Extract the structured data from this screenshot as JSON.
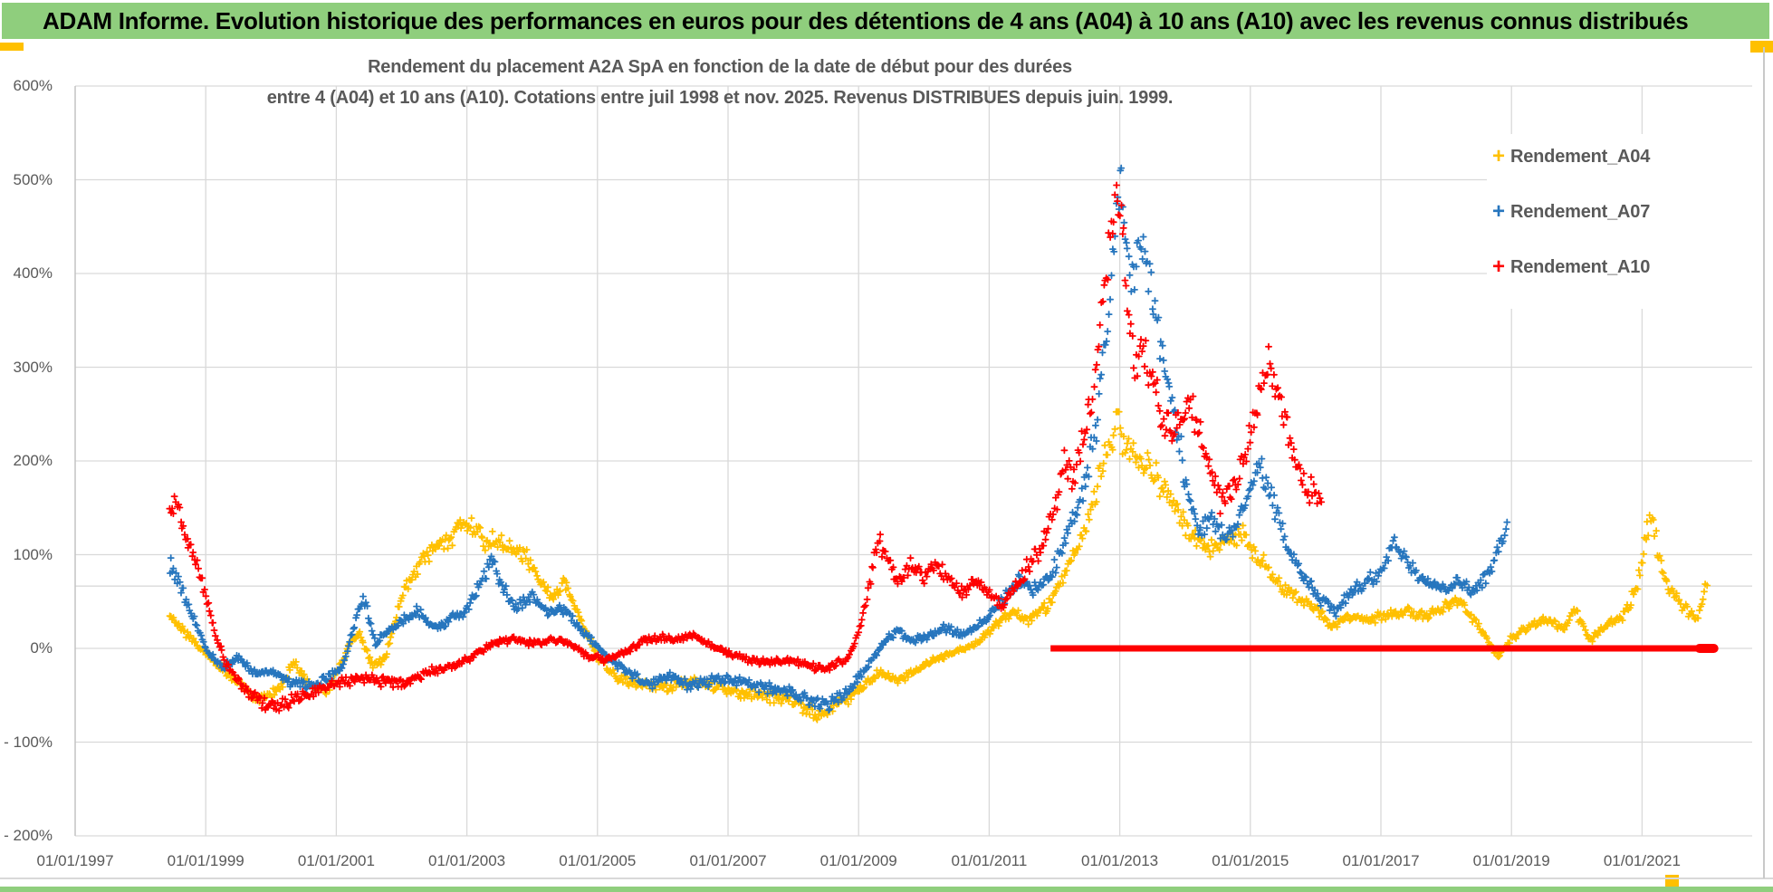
{
  "page": {
    "background": "#FFFFFF",
    "header_green": "#8FCE7D",
    "accent_gold": "#FFC000"
  },
  "header": {
    "title": "ADAM Informe. Evolution historique des performances en euros pour des détentions de 4 ans (A04) à 10 ans (A10) avec les revenus connus distribués"
  },
  "chart_data": {
    "type": "scatter",
    "marker": "plus",
    "grid": true,
    "title_line1": "Rendement du placement A2A SpA en fonction de la date de début pour des durées",
    "title_line2": "entre 4 (A04) et 10 ans (A10). Cotations entre juil 1998 et nov. 2025. Revenus DISTRIBUES depuis juin. 1999.",
    "legend_position": "top-right",
    "ylim": [
      -200,
      600
    ],
    "y_ticks": [
      {
        "label": "600%",
        "value": 600
      },
      {
        "label": "500%",
        "value": 500
      },
      {
        "label": "400%",
        "value": 400
      },
      {
        "label": "300%",
        "value": 300
      },
      {
        "label": "200%",
        "value": 200
      },
      {
        "label": "100%",
        "value": 100
      },
      {
        "label": "0%",
        "value": 0
      },
      {
        "label": "- 100%",
        "value": -100
      },
      {
        "label": "- 200%",
        "value": -200
      }
    ],
    "x_ticks": [
      {
        "label": "01/01/1997",
        "year": 1997
      },
      {
        "label": "01/01/1999",
        "year": 1999
      },
      {
        "label": "01/01/2001",
        "year": 2001
      },
      {
        "label": "01/01/2003",
        "year": 2003
      },
      {
        "label": "01/01/2005",
        "year": 2005
      },
      {
        "label": "01/01/2007",
        "year": 2007
      },
      {
        "label": "01/01/2009",
        "year": 2009
      },
      {
        "label": "01/01/2011",
        "year": 2011
      },
      {
        "label": "01/01/2013",
        "year": 2013
      },
      {
        "label": "01/01/2015",
        "year": 2015
      },
      {
        "label": "01/01/2017",
        "year": 2017
      },
      {
        "label": "01/01/2019",
        "year": 2019
      },
      {
        "label": "01/01/2021",
        "year": 2021
      }
    ],
    "extra_gridline_value": 66.5,
    "series": [
      {
        "name": "Rendement_A04",
        "color": "#FFC000",
        "points": [
          [
            1998.45,
            35
          ],
          [
            1998.7,
            15
          ],
          [
            1999.0,
            -5
          ],
          [
            1999.4,
            -30
          ],
          [
            1999.8,
            -55
          ],
          [
            2000.1,
            -45
          ],
          [
            2000.35,
            -15
          ],
          [
            2000.6,
            -40
          ],
          [
            2000.9,
            -45
          ],
          [
            2001.2,
            5
          ],
          [
            2001.35,
            15
          ],
          [
            2001.55,
            -20
          ],
          [
            2001.75,
            -10
          ],
          [
            2002.0,
            55
          ],
          [
            2002.3,
            95
          ],
          [
            2002.6,
            110
          ],
          [
            2002.9,
            130
          ],
          [
            2003.05,
            135
          ],
          [
            2003.3,
            115
          ],
          [
            2003.6,
            110
          ],
          [
            2003.9,
            100
          ],
          [
            2004.1,
            75
          ],
          [
            2004.3,
            55
          ],
          [
            2004.5,
            70
          ],
          [
            2004.75,
            30
          ],
          [
            2005.0,
            -10
          ],
          [
            2005.3,
            -30
          ],
          [
            2005.7,
            -40
          ],
          [
            2006.1,
            -40
          ],
          [
            2006.5,
            -35
          ],
          [
            2007.0,
            -45
          ],
          [
            2007.5,
            -50
          ],
          [
            2008.0,
            -55
          ],
          [
            2008.35,
            -72
          ],
          [
            2008.7,
            -60
          ],
          [
            2009.0,
            -45
          ],
          [
            2009.3,
            -25
          ],
          [
            2009.6,
            -35
          ],
          [
            2010.0,
            -18
          ],
          [
            2010.4,
            -5
          ],
          [
            2010.8,
            5
          ],
          [
            2011.1,
            25
          ],
          [
            2011.35,
            40
          ],
          [
            2011.6,
            30
          ],
          [
            2011.9,
            45
          ],
          [
            2012.2,
            85
          ],
          [
            2012.5,
            130
          ],
          [
            2012.75,
            195
          ],
          [
            2012.95,
            240
          ],
          [
            2013.1,
            215
          ],
          [
            2013.35,
            200
          ],
          [
            2013.6,
            180
          ],
          [
            2013.85,
            150
          ],
          [
            2014.1,
            120
          ],
          [
            2014.35,
            105
          ],
          [
            2014.65,
            115
          ],
          [
            2014.9,
            120
          ],
          [
            2015.1,
            100
          ],
          [
            2015.4,
            70
          ],
          [
            2015.7,
            55
          ],
          [
            2016.0,
            45
          ],
          [
            2016.25,
            22
          ],
          [
            2016.5,
            35
          ],
          [
            2016.8,
            30
          ],
          [
            2017.1,
            35
          ],
          [
            2017.4,
            40
          ],
          [
            2017.7,
            35
          ],
          [
            2018.0,
            45
          ],
          [
            2018.2,
            50
          ],
          [
            2018.5,
            25
          ],
          [
            2018.8,
            -8
          ],
          [
            2019.0,
            10
          ],
          [
            2019.3,
            25
          ],
          [
            2019.6,
            30
          ],
          [
            2019.8,
            20
          ],
          [
            2019.98,
            42
          ],
          [
            2020.2,
            8
          ],
          [
            2020.45,
            25
          ],
          [
            2020.7,
            35
          ],
          [
            2020.9,
            60
          ],
          [
            2021.05,
            120
          ],
          [
            2021.15,
            140
          ],
          [
            2021.3,
            80
          ],
          [
            2021.5,
            55
          ],
          [
            2021.7,
            40
          ],
          [
            2021.85,
            33
          ],
          [
            2022.0,
            68
          ]
        ]
      },
      {
        "name": "Rendement_A07",
        "color": "#2776BE",
        "points": [
          [
            1998.45,
            90
          ],
          [
            1998.6,
            70
          ],
          [
            1998.8,
            35
          ],
          [
            1999.0,
            0
          ],
          [
            1999.25,
            -20
          ],
          [
            1999.5,
            -10
          ],
          [
            1999.75,
            -25
          ],
          [
            2000.0,
            -25
          ],
          [
            2000.3,
            -35
          ],
          [
            2000.6,
            -40
          ],
          [
            2000.9,
            -30
          ],
          [
            2001.1,
            -20
          ],
          [
            2001.3,
            30
          ],
          [
            2001.42,
            55
          ],
          [
            2001.6,
            5
          ],
          [
            2001.8,
            20
          ],
          [
            2002.0,
            30
          ],
          [
            2002.25,
            40
          ],
          [
            2002.5,
            22
          ],
          [
            2002.75,
            32
          ],
          [
            2003.0,
            40
          ],
          [
            2003.2,
            70
          ],
          [
            2003.38,
            92
          ],
          [
            2003.55,
            65
          ],
          [
            2003.75,
            45
          ],
          [
            2004.0,
            55
          ],
          [
            2004.25,
            38
          ],
          [
            2004.5,
            42
          ],
          [
            2004.75,
            20
          ],
          [
            2005.0,
            2
          ],
          [
            2005.25,
            -15
          ],
          [
            2005.5,
            -28
          ],
          [
            2005.8,
            -38
          ],
          [
            2006.1,
            -30
          ],
          [
            2006.4,
            -40
          ],
          [
            2006.7,
            -35
          ],
          [
            2007.0,
            -32
          ],
          [
            2007.3,
            -38
          ],
          [
            2007.6,
            -42
          ],
          [
            2007.9,
            -45
          ],
          [
            2008.2,
            -52
          ],
          [
            2008.5,
            -60
          ],
          [
            2008.8,
            -50
          ],
          [
            2009.0,
            -32
          ],
          [
            2009.2,
            -12
          ],
          [
            2009.4,
            8
          ],
          [
            2009.6,
            18
          ],
          [
            2009.8,
            8
          ],
          [
            2010.0,
            12
          ],
          [
            2010.3,
            22
          ],
          [
            2010.6,
            15
          ],
          [
            2010.9,
            28
          ],
          [
            2011.2,
            50
          ],
          [
            2011.45,
            72
          ],
          [
            2011.7,
            62
          ],
          [
            2011.95,
            78
          ],
          [
            2012.2,
            120
          ],
          [
            2012.45,
            170
          ],
          [
            2012.65,
            240
          ],
          [
            2012.8,
            330
          ],
          [
            2012.92,
            430
          ],
          [
            2013.0,
            510
          ],
          [
            2013.08,
            440
          ],
          [
            2013.18,
            390
          ],
          [
            2013.3,
            430
          ],
          [
            2013.45,
            400
          ],
          [
            2013.6,
            330
          ],
          [
            2013.75,
            280
          ],
          [
            2013.9,
            220
          ],
          [
            2014.05,
            165
          ],
          [
            2014.2,
            125
          ],
          [
            2014.4,
            140
          ],
          [
            2014.6,
            115
          ],
          [
            2014.8,
            135
          ],
          [
            2015.0,
            170
          ],
          [
            2015.15,
            195
          ],
          [
            2015.3,
            165
          ],
          [
            2015.5,
            120
          ],
          [
            2015.7,
            90
          ],
          [
            2015.9,
            70
          ],
          [
            2016.1,
            50
          ],
          [
            2016.3,
            38
          ],
          [
            2016.55,
            60
          ],
          [
            2016.8,
            72
          ],
          [
            2017.0,
            82
          ],
          [
            2017.2,
            112
          ],
          [
            2017.35,
            95
          ],
          [
            2017.55,
            78
          ],
          [
            2017.75,
            68
          ],
          [
            2018.0,
            62
          ],
          [
            2018.2,
            72
          ],
          [
            2018.4,
            58
          ],
          [
            2018.6,
            75
          ],
          [
            2018.8,
            105
          ],
          [
            2018.95,
            135
          ]
        ]
      },
      {
        "name": "Rendement_A10",
        "color": "#FE0000",
        "points": [
          [
            1998.45,
            145
          ],
          [
            1998.55,
            160
          ],
          [
            1998.7,
            120
          ],
          [
            1998.85,
            90
          ],
          [
            1999.0,
            55
          ],
          [
            1999.15,
            15
          ],
          [
            1999.3,
            -15
          ],
          [
            1999.5,
            -35
          ],
          [
            1999.7,
            -50
          ],
          [
            1999.9,
            -60
          ],
          [
            2000.1,
            -62
          ],
          [
            2000.35,
            -55
          ],
          [
            2000.6,
            -48
          ],
          [
            2000.85,
            -40
          ],
          [
            2001.1,
            -35
          ],
          [
            2001.4,
            -32
          ],
          [
            2001.7,
            -35
          ],
          [
            2002.0,
            -38
          ],
          [
            2002.3,
            -28
          ],
          [
            2002.6,
            -22
          ],
          [
            2002.9,
            -15
          ],
          [
            2003.1,
            -8
          ],
          [
            2003.4,
            5
          ],
          [
            2003.7,
            10
          ],
          [
            2004.0,
            5
          ],
          [
            2004.3,
            10
          ],
          [
            2004.6,
            5
          ],
          [
            2004.85,
            -8
          ],
          [
            2005.1,
            -12
          ],
          [
            2005.4,
            -5
          ],
          [
            2005.7,
            8
          ],
          [
            2005.95,
            12
          ],
          [
            2006.2,
            8
          ],
          [
            2006.45,
            15
          ],
          [
            2006.7,
            5
          ],
          [
            2007.0,
            -5
          ],
          [
            2007.3,
            -12
          ],
          [
            2007.6,
            -15
          ],
          [
            2007.9,
            -12
          ],
          [
            2008.2,
            -18
          ],
          [
            2008.5,
            -22
          ],
          [
            2008.8,
            -12
          ],
          [
            2009.0,
            15
          ],
          [
            2009.15,
            60
          ],
          [
            2009.3,
            115
          ],
          [
            2009.45,
            95
          ],
          [
            2009.6,
            70
          ],
          [
            2009.8,
            88
          ],
          [
            2010.0,
            75
          ],
          [
            2010.2,
            92
          ],
          [
            2010.4,
            72
          ],
          [
            2010.6,
            60
          ],
          [
            2010.8,
            72
          ],
          [
            2011.0,
            58
          ],
          [
            2011.2,
            48
          ],
          [
            2011.4,
            65
          ],
          [
            2011.6,
            88
          ],
          [
            2011.8,
            108
          ],
          [
            2012.0,
            150
          ],
          [
            2012.15,
            195
          ],
          [
            2012.3,
            185
          ],
          [
            2012.45,
            225
          ],
          [
            2012.6,
            280
          ],
          [
            2012.75,
            370
          ],
          [
            2012.88,
            450
          ],
          [
            2012.95,
            495
          ],
          [
            2013.05,
            430
          ],
          [
            2013.15,
            350
          ],
          [
            2013.25,
            300
          ],
          [
            2013.35,
            330
          ],
          [
            2013.5,
            285
          ],
          [
            2013.65,
            250
          ],
          [
            2013.8,
            230
          ],
          [
            2013.95,
            245
          ],
          [
            2014.1,
            255
          ],
          [
            2014.25,
            225
          ],
          [
            2014.4,
            185
          ],
          [
            2014.55,
            155
          ],
          [
            2014.7,
            165
          ],
          [
            2014.85,
            185
          ],
          [
            2015.0,
            230
          ],
          [
            2015.15,
            270
          ],
          [
            2015.3,
            300
          ],
          [
            2015.45,
            265
          ],
          [
            2015.6,
            225
          ],
          [
            2015.75,
            190
          ],
          [
            2015.9,
            170
          ],
          [
            2016.1,
            155
          ]
        ]
      }
    ],
    "zero_flat_line": {
      "series": "Rendement_A10",
      "value": 0,
      "from_year": 2011.94,
      "to_year": 2022.1,
      "color": "#FE0000"
    }
  }
}
